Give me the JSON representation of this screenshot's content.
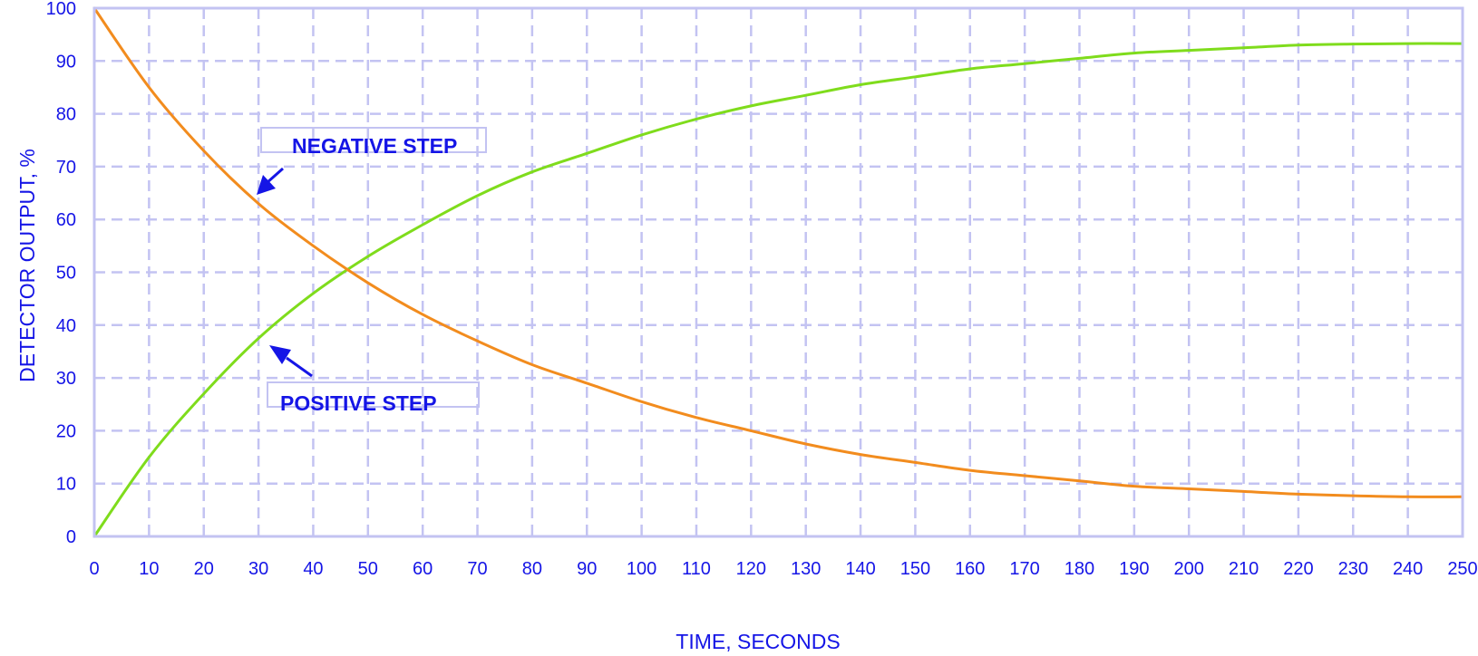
{
  "chart_data": {
    "type": "line",
    "title": "",
    "xlabel": "TIME, SECONDS",
    "ylabel": "DETECTOR OUTPUT, %",
    "xlim": [
      0,
      250
    ],
    "ylim": [
      0,
      100
    ],
    "x_ticks": [
      0,
      10,
      20,
      30,
      40,
      50,
      60,
      70,
      80,
      90,
      100,
      110,
      120,
      130,
      140,
      150,
      160,
      170,
      180,
      190,
      200,
      210,
      220,
      230,
      240,
      250
    ],
    "y_ticks": [
      0,
      10,
      20,
      30,
      40,
      50,
      60,
      70,
      80,
      90,
      100
    ],
    "grid": true,
    "colors": {
      "axis_text": "#1515e6",
      "grid": "#c3c3f2",
      "positive_step": "#7fdc1c",
      "negative_step": "#f28c1e",
      "annotation": "#1515e6"
    },
    "series": [
      {
        "label": "POSITIVE STEP",
        "color": "#7fdc1c",
        "points": [
          [
            0,
            0
          ],
          [
            10,
            15
          ],
          [
            20,
            27
          ],
          [
            30,
            37.5
          ],
          [
            40,
            46
          ],
          [
            50,
            53
          ],
          [
            60,
            59
          ],
          [
            70,
            64.5
          ],
          [
            80,
            69
          ],
          [
            90,
            72.5
          ],
          [
            100,
            76
          ],
          [
            110,
            79
          ],
          [
            120,
            81.5
          ],
          [
            130,
            83.5
          ],
          [
            140,
            85.5
          ],
          [
            150,
            87
          ],
          [
            160,
            88.5
          ],
          [
            170,
            89.5
          ],
          [
            180,
            90.5
          ],
          [
            190,
            91.5
          ],
          [
            200,
            92
          ],
          [
            210,
            92.5
          ],
          [
            220,
            93
          ],
          [
            230,
            93.2
          ],
          [
            240,
            93.3
          ],
          [
            250,
            93.3
          ]
        ]
      },
      {
        "label": "NEGATIVE STEP",
        "color": "#f28c1e",
        "points": [
          [
            0,
            100
          ],
          [
            10,
            85
          ],
          [
            20,
            73
          ],
          [
            30,
            63
          ],
          [
            40,
            55
          ],
          [
            50,
            48
          ],
          [
            60,
            42
          ],
          [
            70,
            37
          ],
          [
            80,
            32.5
          ],
          [
            90,
            29
          ],
          [
            100,
            25.5
          ],
          [
            110,
            22.5
          ],
          [
            120,
            20
          ],
          [
            130,
            17.5
          ],
          [
            140,
            15.5
          ],
          [
            150,
            14
          ],
          [
            160,
            12.5
          ],
          [
            170,
            11.5
          ],
          [
            180,
            10.5
          ],
          [
            190,
            9.5
          ],
          [
            200,
            9
          ],
          [
            210,
            8.5
          ],
          [
            220,
            8
          ],
          [
            230,
            7.7
          ],
          [
            240,
            7.5
          ],
          [
            250,
            7.5
          ]
        ]
      }
    ],
    "annotations": [
      {
        "text": "NEGATIVE STEP",
        "target": [
          30,
          64
        ]
      },
      {
        "text": "POSITIVE STEP",
        "target": [
          32,
          37
        ]
      }
    ]
  }
}
